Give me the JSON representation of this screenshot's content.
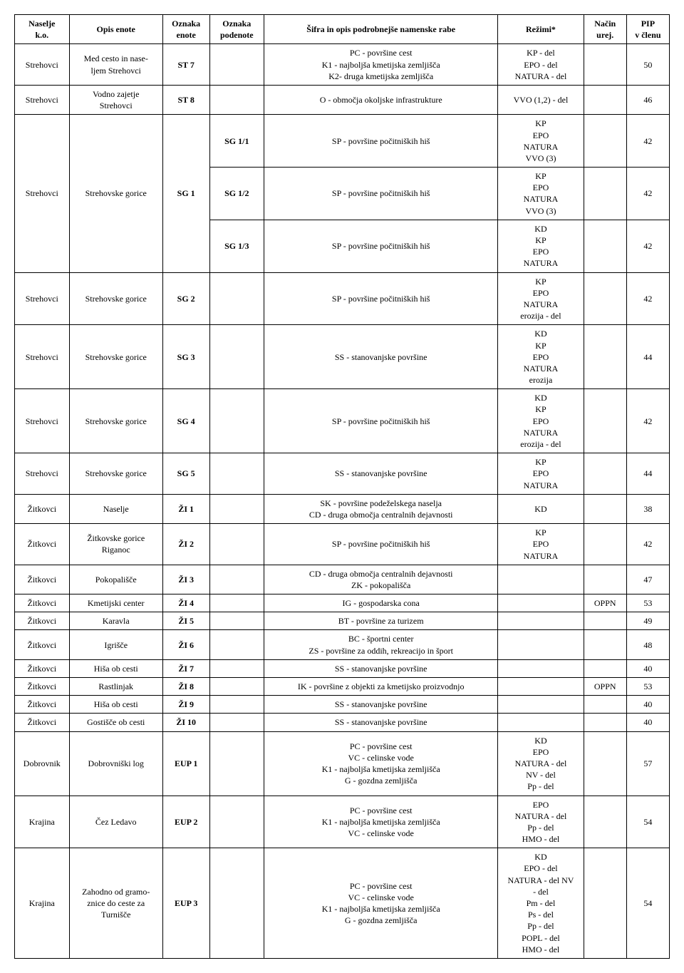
{
  "headers": {
    "naselje": "Naselje\nk.o.",
    "opis": "Opis enote",
    "oznaka": "Oznaka\nenote",
    "podenota": "Oznaka\npodenote",
    "sifra": "Šifra in opis podrobnejše namenske rabe",
    "rezimi": "Režimi*",
    "nacin": "Način\nurej.",
    "pip": "PIP\nv členu"
  },
  "rows": [
    {
      "naselje": "Strehovci",
      "opis": "Med cesto in nase-\nljem Strehovci",
      "oznaka": "ST 7",
      "podenota": "",
      "sifra": "PC - površine cest\nK1 - najboljša kmetijska zemljišča\nK2- druga kmetijska zemljišča",
      "rezimi": "KP - del\nEPO - del\nNATURA - del",
      "nacin": "",
      "pip": "50"
    },
    {
      "naselje": "Strehovci",
      "opis": "Vodno zajetje\nStrehovci",
      "oznaka": "ST 8",
      "podenota": "",
      "sifra": "O - območja okoljske infrastrukture",
      "rezimi": "VVO (1,2) - del",
      "nacin": "",
      "pip": "46"
    },
    {
      "sub": true,
      "podenota": "SG 1/1",
      "sifra": "SP - površine počitniških hiš",
      "rezimi": "KP\nEPO\nNATURA\nVVO (3)",
      "nacin": "",
      "pip": "42"
    },
    {
      "sub": true,
      "podenota": "SG 1/2",
      "sifra": "SP - površine počitniških hiš",
      "rezimi": "KP\nEPO\nNATURA\nVVO (3)",
      "nacin": "",
      "pip": "42"
    },
    {
      "sub": true,
      "podenota": "SG 1/3",
      "sifra": "SP - površine počitniških hiš",
      "rezimi": "KD\nKP\nEPO\nNATURA",
      "nacin": "",
      "pip": "42"
    },
    {
      "naselje": "Strehovci",
      "opis": "Strehovske gorice",
      "oznaka": "SG 2",
      "podenota": "",
      "sifra": "SP - površine počitniških hiš",
      "rezimi": "KP\nEPO\nNATURA\nerozija - del",
      "nacin": "",
      "pip": "42"
    },
    {
      "naselje": "Strehovci",
      "opis": "Strehovske gorice",
      "oznaka": "SG 3",
      "podenota": "",
      "sifra": "SS - stanovanjske površine",
      "rezimi": "KD\nKP\nEPO\nNATURA\nerozija",
      "nacin": "",
      "pip": "44"
    },
    {
      "naselje": "Strehovci",
      "opis": "Strehovske gorice",
      "oznaka": "SG 4",
      "podenota": "",
      "sifra": "SP - površine počitniških hiš",
      "rezimi": "KD\nKP\nEPO\nNATURA\nerozija - del",
      "nacin": "",
      "pip": "42"
    },
    {
      "naselje": "Strehovci",
      "opis": "Strehovske gorice",
      "oznaka": "SG 5",
      "podenota": "",
      "sifra": "SS - stanovanjske površine",
      "rezimi": "KP\nEPO\nNATURA",
      "nacin": "",
      "pip": "44"
    },
    {
      "naselje": "Žitkovci",
      "opis": "Naselje",
      "oznaka": "ŽI 1",
      "podenota": "",
      "sifra": "SK - površine podeželskega naselja\nCD - druga območja centralnih dejavnosti",
      "rezimi": "KD",
      "nacin": "",
      "pip": "38"
    },
    {
      "naselje": "Žitkovci",
      "opis": "Žitkovske gorice\nRiganoc",
      "oznaka": "ŽI 2",
      "podenota": "",
      "sifra": "SP - površine počitniških hiš",
      "rezimi": "KP\nEPO\nNATURA",
      "nacin": "",
      "pip": "42"
    },
    {
      "naselje": "Žitkovci",
      "opis": "Pokopališče",
      "oznaka": "ŽI 3",
      "podenota": "",
      "sifra": "CD - druga območja centralnih dejavnosti\nZK - pokopališča",
      "rezimi": "",
      "nacin": "",
      "pip": "47"
    },
    {
      "naselje": "Žitkovci",
      "opis": "Kmetijski center",
      "oznaka": "ŽI 4",
      "podenota": "",
      "sifra": "IG - gospodarska cona",
      "rezimi": "",
      "nacin": "OPPN",
      "pip": "53"
    },
    {
      "naselje": "Žitkovci",
      "opis": "Karavla",
      "oznaka": "ŽI 5",
      "podenota": "",
      "sifra": "BT - površine za turizem",
      "rezimi": "",
      "nacin": "",
      "pip": "49"
    },
    {
      "naselje": "Žitkovci",
      "opis": "Igrišče",
      "oznaka": "ŽI 6",
      "podenota": "",
      "sifra": "BC - športni center\nZS - površine za oddih, rekreacijo in šport",
      "rezimi": "",
      "nacin": "",
      "pip": "48"
    },
    {
      "naselje": "Žitkovci",
      "opis": "Hiša ob cesti",
      "oznaka": "ŽI 7",
      "podenota": "",
      "sifra": "SS - stanovanjske površine",
      "rezimi": "",
      "nacin": "",
      "pip": "40"
    },
    {
      "naselje": "Žitkovci",
      "opis": "Rastlinjak",
      "oznaka": "ŽI 8",
      "podenota": "",
      "sifra": "IK - površine z objekti za kmetijsko proizvodnjo",
      "rezimi": "",
      "nacin": "OPPN",
      "pip": "53"
    },
    {
      "naselje": "Žitkovci",
      "opis": "Hiša ob cesti",
      "oznaka": "ŽI 9",
      "podenota": "",
      "sifra": "SS - stanovanjske površine",
      "rezimi": "",
      "nacin": "",
      "pip": "40"
    },
    {
      "naselje": "Žitkovci",
      "opis": "Gostišče ob cesti",
      "oznaka": "ŽI 10",
      "podenota": "",
      "sifra": "SS - stanovanjske površine",
      "rezimi": "",
      "nacin": "",
      "pip": "40"
    },
    {
      "naselje": "Dobrovnik",
      "opis": "Dobrovniški log",
      "oznaka": "EUP 1",
      "podenota": "",
      "sifra": "PC - površine cest\nVC - celinske vode\nK1 - najboljša kmetijska zemljišča\nG - gozdna zemljišča",
      "rezimi": "KD\nEPO\nNATURA - del\nNV - del\nPp - del",
      "nacin": "",
      "pip": "57"
    },
    {
      "naselje": "Krajina",
      "opis": "Čez Ledavo",
      "oznaka": "EUP 2",
      "podenota": "",
      "sifra": "PC - površine cest\nK1 - najboljša kmetijska zemljišča\nVC - celinske vode",
      "rezimi": "EPO\nNATURA - del\nPp - del\nHMO - del",
      "nacin": "",
      "pip": "54"
    },
    {
      "naselje": "Krajina",
      "opis": "Zahodno od gramo-\nznice do ceste za\nTurnišče",
      "oznaka": "EUP 3",
      "podenota": "",
      "sifra": "PC - površine cest\nVC - celinske vode\nK1 - najboljša kmetijska zemljišča\nG - gozdna zemljišča",
      "rezimi": "KD\nEPO - del\nNATURA - del NV\n- del\nPm - del\nPs - del\nPp - del\nPOPL - del\nHMO - del",
      "nacin": "",
      "pip": "54"
    }
  ],
  "merged": {
    "naselje": "Strehovci",
    "opis": "Strehovske gorice",
    "oznaka": "SG 1"
  }
}
